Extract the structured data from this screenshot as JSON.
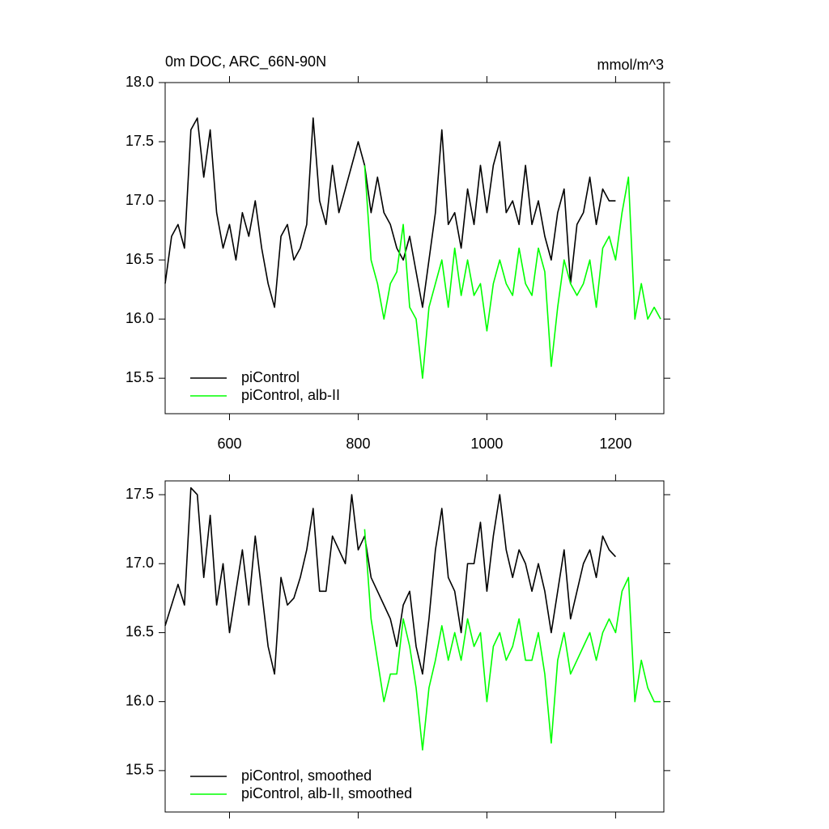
{
  "chart_data": [
    {
      "type": "line",
      "title": "0m DOC, ARC_66N-90N",
      "units": "mmol/m^3",
      "x": [
        500,
        510,
        520,
        530,
        540,
        550,
        560,
        570,
        580,
        590,
        600,
        610,
        620,
        630,
        640,
        650,
        660,
        670,
        680,
        690,
        700,
        710,
        720,
        730,
        740,
        750,
        760,
        770,
        780,
        790,
        800,
        810,
        820,
        830,
        840,
        850,
        860,
        870,
        880,
        890,
        900,
        910,
        920,
        930,
        940,
        950,
        960,
        970,
        980,
        990,
        1000,
        1010,
        1020,
        1030,
        1040,
        1050,
        1060,
        1070,
        1080,
        1090,
        1100,
        1110,
        1120,
        1130,
        1140,
        1150,
        1160,
        1170,
        1180,
        1190,
        1200,
        1210,
        1220,
        1230,
        1240,
        1250,
        1260,
        1270
      ],
      "series": [
        {
          "name": "piControl",
          "color": "#000000",
          "values": [
            16.3,
            16.7,
            16.8,
            16.6,
            17.6,
            17.7,
            17.2,
            17.6,
            16.9,
            16.6,
            16.8,
            16.5,
            16.9,
            16.7,
            17.0,
            16.6,
            16.3,
            16.1,
            16.7,
            16.8,
            16.5,
            16.6,
            16.8,
            17.7,
            17.0,
            16.8,
            17.3,
            16.9,
            17.1,
            17.3,
            17.5,
            17.3,
            16.9,
            17.2,
            16.9,
            16.8,
            16.6,
            16.5,
            16.7,
            16.4,
            16.1,
            16.5,
            16.9,
            17.6,
            16.8,
            16.9,
            16.6,
            17.1,
            16.8,
            17.3,
            16.9,
            17.3,
            17.5,
            16.9,
            17.0,
            16.8,
            17.3,
            16.8,
            17.0,
            16.7,
            16.5,
            16.9,
            17.1,
            16.3,
            16.8,
            16.9,
            17.2,
            16.8,
            17.1,
            17.0,
            17.0,
            null,
            null,
            null,
            null,
            null,
            null,
            null
          ]
        },
        {
          "name": "piControl, alb-II",
          "color": "#00ff00",
          "values": [
            null,
            null,
            null,
            null,
            null,
            null,
            null,
            null,
            null,
            null,
            null,
            null,
            null,
            null,
            null,
            null,
            null,
            null,
            null,
            null,
            null,
            null,
            null,
            null,
            null,
            null,
            null,
            null,
            null,
            null,
            null,
            17.3,
            16.5,
            16.3,
            16.0,
            16.3,
            16.4,
            16.8,
            16.1,
            16.0,
            15.5,
            16.1,
            16.3,
            16.5,
            16.1,
            16.6,
            16.2,
            16.5,
            16.2,
            16.3,
            15.9,
            16.3,
            16.5,
            16.3,
            16.2,
            16.6,
            16.3,
            16.2,
            16.6,
            16.4,
            15.6,
            16.1,
            16.5,
            16.3,
            16.2,
            16.3,
            16.5,
            16.1,
            16.6,
            16.7,
            16.5,
            16.9,
            17.2,
            16.0,
            16.3,
            16.0,
            16.1,
            16.0
          ]
        }
      ],
      "xlim": [
        500,
        1275
      ],
      "ylim": [
        15.2,
        18.0
      ],
      "xticks": [
        600,
        800,
        1000,
        1200
      ],
      "yticks": [
        {
          "value": 18,
          "label": "18.0"
        },
        17.5,
        {
          "value": 17,
          "label": "17.0"
        },
        16.5,
        {
          "value": 16,
          "label": "16.0"
        },
        15.5
      ],
      "xtick_labels": true,
      "legend": "lower left"
    },
    {
      "type": "line",
      "x": [
        500,
        510,
        520,
        530,
        540,
        550,
        560,
        570,
        580,
        590,
        600,
        610,
        620,
        630,
        640,
        650,
        660,
        670,
        680,
        690,
        700,
        710,
        720,
        730,
        740,
        750,
        760,
        770,
        780,
        790,
        800,
        810,
        820,
        830,
        840,
        850,
        860,
        870,
        880,
        890,
        900,
        910,
        920,
        930,
        940,
        950,
        960,
        970,
        980,
        990,
        1000,
        1010,
        1020,
        1030,
        1040,
        1050,
        1060,
        1070,
        1080,
        1090,
        1100,
        1110,
        1120,
        1130,
        1140,
        1150,
        1160,
        1170,
        1180,
        1190,
        1200,
        1210,
        1220,
        1230,
        1240,
        1250,
        1260,
        1270
      ],
      "series": [
        {
          "name": "piControl, smoothed",
          "color": "#000000",
          "values": [
            16.55,
            16.7,
            16.85,
            16.7,
            17.55,
            17.5,
            16.9,
            17.35,
            16.7,
            17.0,
            16.5,
            16.8,
            17.1,
            16.7,
            17.2,
            16.8,
            16.4,
            16.2,
            16.9,
            16.7,
            16.75,
            16.9,
            17.1,
            17.4,
            16.8,
            16.8,
            17.2,
            17.1,
            17.0,
            17.5,
            17.1,
            17.2,
            16.9,
            16.8,
            16.7,
            16.6,
            16.4,
            16.7,
            16.8,
            16.4,
            16.2,
            16.6,
            17.1,
            17.4,
            16.9,
            16.8,
            16.5,
            17.0,
            17.0,
            17.3,
            16.8,
            17.2,
            17.5,
            17.1,
            16.9,
            17.1,
            17.0,
            16.8,
            17.0,
            16.8,
            16.5,
            16.8,
            17.1,
            16.6,
            16.8,
            17.0,
            17.1,
            16.9,
            17.2,
            17.1,
            17.05,
            null,
            null,
            null,
            null,
            null,
            null,
            null
          ]
        },
        {
          "name": "piControl, alb-II, smoothed",
          "color": "#00ff00",
          "values": [
            null,
            null,
            null,
            null,
            null,
            null,
            null,
            null,
            null,
            null,
            null,
            null,
            null,
            null,
            null,
            null,
            null,
            null,
            null,
            null,
            null,
            null,
            null,
            null,
            null,
            null,
            null,
            null,
            null,
            null,
            null,
            17.25,
            16.6,
            16.3,
            16.0,
            16.2,
            16.2,
            16.6,
            16.4,
            16.1,
            15.65,
            16.1,
            16.3,
            16.55,
            16.3,
            16.5,
            16.3,
            16.6,
            16.4,
            16.5,
            16.0,
            16.4,
            16.5,
            16.3,
            16.4,
            16.6,
            16.3,
            16.3,
            16.5,
            16.2,
            15.7,
            16.3,
            16.5,
            16.2,
            16.3,
            16.4,
            16.5,
            16.3,
            16.5,
            16.6,
            16.5,
            16.8,
            16.9,
            16.0,
            16.3,
            16.1,
            16.0,
            16.0
          ]
        }
      ],
      "xlim": [
        500,
        1275
      ],
      "ylim": [
        15.2,
        17.6
      ],
      "xticks": [
        600,
        800,
        1000,
        1200
      ],
      "yticks": [
        17.5,
        {
          "value": 17,
          "label": "17.0"
        },
        16.5,
        {
          "value": 16,
          "label": "16.0"
        },
        15.5
      ],
      "xtick_labels": false,
      "legend": "lower left"
    }
  ]
}
